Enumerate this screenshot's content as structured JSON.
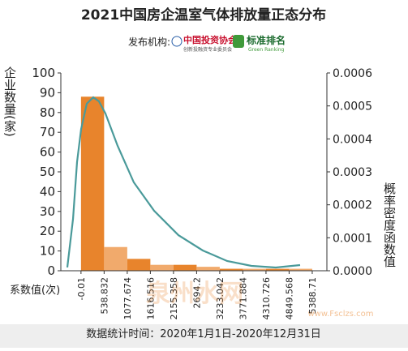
{
  "chart_data": {
    "type": "histogram",
    "title": "2021中国房企温室气体排放量正态分布",
    "publisher_label": "发布机构:",
    "publishers": [
      "中国投资协会",
      "创新投融资专业委员会",
      "标准排名",
      "Green Ranking"
    ],
    "y_label": "企业数量(家)",
    "y2_label": "概率密度函数值",
    "x_label": "系数值(次)",
    "footer": "数据统计时间：2020年1月1日-2020年12月31日",
    "watermark": [
      "泉州水网",
      "www.Fsclzs.com"
    ],
    "bins": [
      -0.01,
      538.832,
      1077.674,
      1616.516,
      2155.358,
      2694.2,
      3233.042,
      3771.884,
      4310.726,
      4849.568,
      5388.71
    ],
    "counts": [
      88,
      12,
      6,
      3,
      3,
      2,
      1,
      1,
      1,
      1
    ],
    "colors": [
      "#e8842c",
      "#f1aa6c",
      "#e8842c",
      "#f1aa6c",
      "#e8842c",
      "#f1aa6c",
      "#e8842c",
      "#f1aa6c",
      "#e8842c",
      "#f1aa6c"
    ],
    "xlim": [
      -470,
      5730
    ],
    "ylim": [
      0,
      100
    ],
    "yticks": [
      0,
      10,
      20,
      30,
      40,
      50,
      60,
      70,
      80,
      90,
      100
    ],
    "y2lim": [
      0,
      0.0006
    ],
    "y2ticks": [
      {
        "value": 0,
        "label": "0.0000"
      },
      {
        "value": 0.0001,
        "label": "0.0001"
      },
      {
        "value": 0.0002,
        "label": "0.0002"
      },
      {
        "value": 0.0003,
        "label": "0.0003"
      },
      {
        "value": 0.0004,
        "label": "0.0004"
      },
      {
        "value": 0.0005,
        "label": "0.0005"
      },
      {
        "value": 0.0006,
        "label": "0.0006"
      }
    ],
    "series": [
      {
        "axis": "y2",
        "color": "#4a9a9a",
        "x": [
          -319,
          -186,
          -92,
          3,
          135,
          286,
          418,
          570,
          853,
          1231,
          1704,
          2270,
          2838,
          3405,
          3972,
          4539,
          5106
        ],
        "values": [
          1e-05,
          0.000157,
          0.00033,
          0.00043,
          0.000507,
          0.000526,
          0.000514,
          0.000477,
          0.000379,
          0.000268,
          0.000182,
          0.000108,
          6.15e-05,
          2.95e-05,
          1.48e-05,
          9.8e-06,
          1.72e-05
        ]
      }
    ]
  }
}
